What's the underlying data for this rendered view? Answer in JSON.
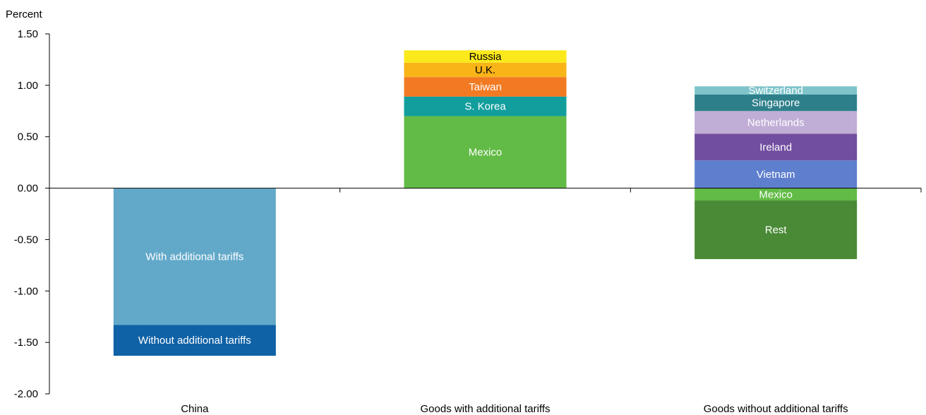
{
  "chart_data": {
    "type": "bar",
    "stacked": true,
    "ylabel": "Percent",
    "ylim": [
      -2.0,
      1.5
    ],
    "yticks": [
      "1.50",
      "1.00",
      "0.50",
      "0.00",
      "-0.50",
      "-1.00",
      "-1.50",
      "-2.00"
    ],
    "ytick_values": [
      1.5,
      1.0,
      0.5,
      0.0,
      -0.5,
      -1.0,
      -1.5,
      -2.0
    ],
    "grid": false,
    "legend": "none",
    "categories": [
      "China",
      "Goods with additional tariffs",
      "Goods without additional tariffs"
    ],
    "stacks": [
      {
        "category": "China",
        "segments": [
          {
            "label": "With additional tariffs",
            "value": -1.33,
            "color": "#62A9C9",
            "text_color": "#ffffff"
          },
          {
            "label": "Without additional tariffs",
            "value": -0.3,
            "color": "#0F62A6",
            "text_color": "#ffffff"
          }
        ]
      },
      {
        "category": "Goods with additional tariffs",
        "segments": [
          {
            "label": "Mexico",
            "value": 0.7,
            "color": "#62BB46",
            "text_color": "#ffffff"
          },
          {
            "label": "S. Korea",
            "value": 0.19,
            "color": "#119E9D",
            "text_color": "#ffffff"
          },
          {
            "label": "Taiwan",
            "value": 0.19,
            "color": "#F27A22",
            "text_color": "#ffffff"
          },
          {
            "label": "U.K.",
            "value": 0.14,
            "color": "#F9B418",
            "text_color": "#000000"
          },
          {
            "label": "Russia",
            "value": 0.12,
            "color": "#FBE91B",
            "text_color": "#000000"
          }
        ]
      },
      {
        "category": "Goods without additional tariffs",
        "segments": [
          {
            "label": "Vietnam",
            "value": 0.27,
            "color": "#5E7FCE",
            "text_color": "#ffffff"
          },
          {
            "label": "Ireland",
            "value": 0.26,
            "color": "#724EA0",
            "text_color": "#ffffff"
          },
          {
            "label": "Netherlands",
            "value": 0.22,
            "color": "#C0AED6",
            "text_color": "#ffffff"
          },
          {
            "label": "Singapore",
            "value": 0.16,
            "color": "#2D7F8A",
            "text_color": "#ffffff"
          },
          {
            "label": "Switzerland",
            "value": 0.08,
            "color": "#7EC4CA",
            "text_color": "#ffffff"
          },
          {
            "label": "Mexico",
            "value": -0.12,
            "color": "#62BB46",
            "text_color": "#ffffff"
          },
          {
            "label": "Rest",
            "value": -0.57,
            "color": "#4A8A36",
            "text_color": "#ffffff"
          }
        ]
      }
    ]
  }
}
